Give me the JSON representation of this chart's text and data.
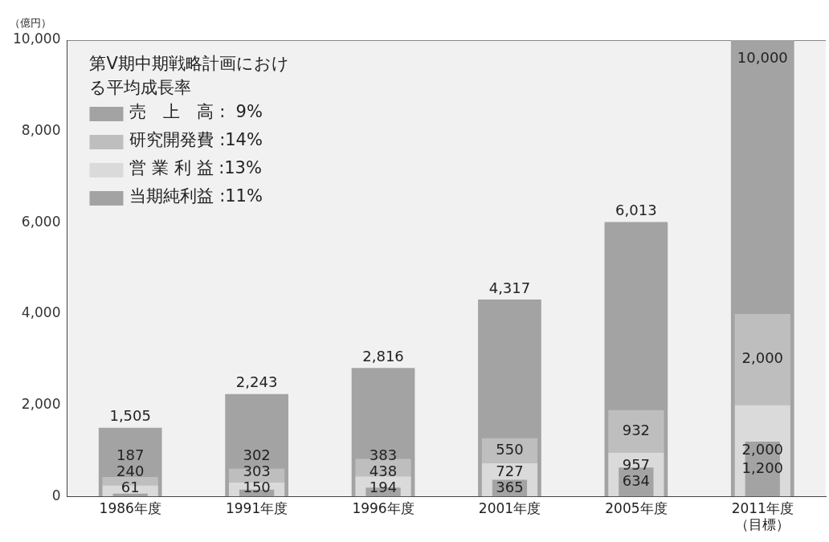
{
  "chart_data": {
    "type": "bar",
    "ylabel": "（億円）",
    "legend_title": "第Ⅴ期中期戦略計画における平均成長率",
    "legend": "top left",
    "grid": false,
    "categories": [
      "1986年度",
      "1991年度",
      "1996年度",
      "2001年度",
      "2005年度",
      "2011年度（目標）"
    ],
    "series": [
      {
        "name": "売　上　高 :  9%",
        "color": "#a3a3a3",
        "values": [
          1505,
          2243,
          2816,
          4317,
          6013,
          10000
        ],
        "value_labels": [
          "1,505",
          "2,243",
          "2,816",
          "4,317",
          "6,013",
          "10,000"
        ]
      },
      {
        "name": "研究開発費 :14%",
        "color": "#bebebe",
        "values": [
          187,
          302,
          383,
          550,
          932,
          2000
        ],
        "base": [
          240,
          303,
          438,
          727,
          957,
          2000
        ],
        "value_labels": [
          "187",
          "302",
          "383",
          "550",
          "932",
          "2,000"
        ]
      },
      {
        "name": "営 業 利 益 :13%",
        "color": "#dadada",
        "values": [
          240,
          303,
          438,
          727,
          957,
          2000
        ],
        "value_labels": [
          "240",
          "303",
          "438",
          "727",
          "957",
          "2,000"
        ]
      },
      {
        "name": "当期純利益 :11%",
        "color": "#a3a3a3",
        "values": [
          61,
          150,
          194,
          365,
          634,
          1200
        ],
        "value_labels": [
          "61",
          "150",
          "194",
          "365",
          "634",
          "1,200"
        ]
      }
    ],
    "ylim": [
      0,
      10000
    ],
    "yticks": [
      {
        "value": 0,
        "label": "0"
      },
      {
        "value": 2000,
        "label": "2,000"
      },
      {
        "value": 4000,
        "label": "4,000"
      },
      {
        "value": 6000,
        "label": "6,000"
      },
      {
        "value": 8000,
        "label": "8,000"
      },
      {
        "value": 10000,
        "label": "10,000"
      }
    ]
  }
}
